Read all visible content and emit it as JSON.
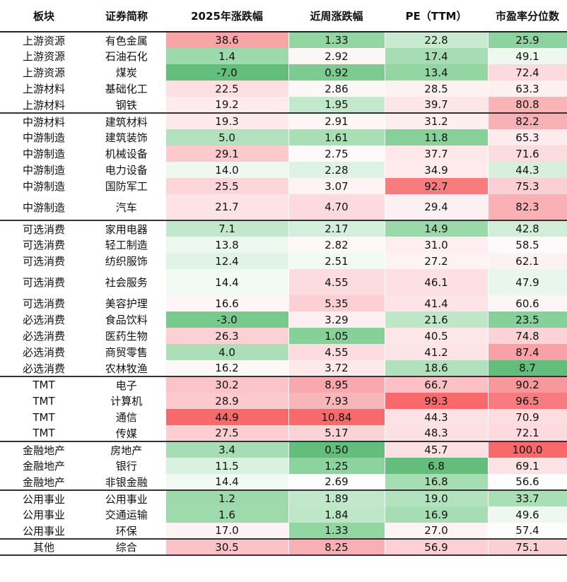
{
  "chart_data": {
    "type": "table",
    "columns": [
      "板块",
      "证券简称",
      "2025年涨跌幅",
      "近周涨跌幅",
      "PE（TTM）",
      "市盈率分位数"
    ],
    "rows": [
      {
        "sector": "上游资源",
        "name": "有色金属",
        "ytd": "38.6",
        "week": "1.33",
        "pe": "22.8",
        "pct": "25.9",
        "c": [
          "#f8a5a5",
          "#92d6a2",
          "#c8ebd0",
          "#8ed39f"
        ]
      },
      {
        "sector": "上游资源",
        "name": "石油石化",
        "ytd": "1.4",
        "week": "2.92",
        "pe": "17.4",
        "pct": "49.1",
        "c": [
          "#9ddaab",
          "#fdf6f7",
          "#a6ddb3",
          "#edf8f0"
        ]
      },
      {
        "sector": "上游资源",
        "name": "煤炭",
        "ytd": "-7.0",
        "week": "0.92",
        "pe": "13.4",
        "pct": "72.4",
        "c": [
          "#63be7b",
          "#7ccb91",
          "#93d5a3",
          "#fcdade"
        ]
      },
      {
        "sector": "上游材料",
        "name": "基础化工",
        "ytd": "22.5",
        "week": "2.86",
        "pe": "28.5",
        "pct": "63.3",
        "c": [
          "#fde0e3",
          "#fef7f8",
          "#fdf1f2",
          "#fdf0f1"
        ]
      },
      {
        "sector": "上游材料",
        "name": "钢铁",
        "ytd": "19.2",
        "week": "1.95",
        "pe": "39.7",
        "pct": "80.8",
        "c": [
          "#feebed",
          "#c3e9cc",
          "#fde6e8",
          "#f9b4b8"
        ]
      },
      {
        "sector": "中游材料",
        "name": "建筑材料",
        "ytd": "19.3",
        "week": "2.91",
        "pe": "31.2",
        "pct": "82.2",
        "c": [
          "#feeaec",
          "#fef6f7",
          "#feeef0",
          "#f9b1b5"
        ],
        "grp": true
      },
      {
        "sector": "中游制造",
        "name": "建筑装饰",
        "ytd": "5.0",
        "week": "1.61",
        "pe": "11.8",
        "pct": "65.3",
        "c": [
          "#b2e2bd",
          "#a9dfb5",
          "#86d099",
          "#fdebed"
        ]
      },
      {
        "sector": "中游制造",
        "name": "机械设备",
        "ytd": "29.1",
        "week": "2.75",
        "pe": "37.7",
        "pct": "71.6",
        "c": [
          "#fcc9cd",
          "#fef9fa",
          "#fde8ea",
          "#fcdcdf"
        ]
      },
      {
        "sector": "中游制造",
        "name": "电力设备",
        "ytd": "14.0",
        "week": "2.28",
        "pe": "34.9",
        "pct": "44.3",
        "c": [
          "#eef8f1",
          "#dff3e5",
          "#fdebed",
          "#d6f0dc"
        ]
      },
      {
        "sector": "中游制造",
        "name": "国防军工",
        "ytd": "25.5",
        "week": "3.07",
        "pe": "92.7",
        "pct": "75.3",
        "c": [
          "#fcd5d8",
          "#fef3f4",
          "#f77c7e",
          "#fbd0d4"
        ]
      },
      {
        "sector": "中游制造",
        "name": "汽车",
        "ytd": "21.7",
        "week": "4.70",
        "pe": "29.4",
        "pct": "82.3",
        "c": [
          "#fde3e5",
          "#fcdadd",
          "#fdf0f2",
          "#f9b1b5"
        ],
        "tall": true
      },
      {
        "sector": "可选消费",
        "name": "家用电器",
        "ytd": "7.1",
        "week": "2.17",
        "pe": "14.9",
        "pct": "42.8",
        "c": [
          "#c2e8cb",
          "#d3eeda",
          "#9cd9aa",
          "#d2eed9"
        ],
        "grp": true
      },
      {
        "sector": "可选消费",
        "name": "轻工制造",
        "ytd": "13.8",
        "week": "2.82",
        "pe": "31.0",
        "pct": "58.5",
        "c": [
          "#ecf7ef",
          "#fef8f9",
          "#feeef0",
          "#fefafb"
        ]
      },
      {
        "sector": "可选消费",
        "name": "纺织服饰",
        "ytd": "12.4",
        "week": "2.51",
        "pe": "27.2",
        "pct": "62.1",
        "c": [
          "#e0f4e6",
          "#f0f9f3",
          "#fdf3f4",
          "#fdf2f3"
        ]
      },
      {
        "sector": "可选消费",
        "name": "社会服务",
        "ytd": "14.4",
        "week": "4.55",
        "pe": "46.1",
        "pct": "47.9",
        "c": [
          "#f2faf4",
          "#fcdcdf",
          "#fde0e3",
          "#e8f6ec"
        ],
        "tall": true
      },
      {
        "sector": "可选消费",
        "name": "美容护理",
        "ytd": "16.6",
        "week": "5.35",
        "pe": "41.4",
        "pct": "60.6",
        "c": [
          "#fef5f6",
          "#fbcfd3",
          "#fde4e7",
          "#fef5f6"
        ]
      },
      {
        "sector": "必选消费",
        "name": "食品饮料",
        "ytd": "-3.0",
        "week": "3.29",
        "pe": "21.6",
        "pct": "23.5",
        "c": [
          "#78c98d",
          "#fdeff1",
          "#bee7c8",
          "#86d099"
        ]
      },
      {
        "sector": "必选消费",
        "name": "医药生物",
        "ytd": "26.3",
        "week": "1.05",
        "pe": "40.5",
        "pct": "74.8",
        "c": [
          "#fcd1d5",
          "#86d099",
          "#fde6e8",
          "#fbd2d6"
        ]
      },
      {
        "sector": "必选消费",
        "name": "商贸零售",
        "ytd": "4.0",
        "week": "4.55",
        "pe": "41.2",
        "pct": "87.4",
        "c": [
          "#acdfb8",
          "#fcdcdf",
          "#fde5e7",
          "#f8a1a6"
        ]
      },
      {
        "sector": "必选消费",
        "name": "农林牧渔",
        "ytd": "16.2",
        "week": "3.72",
        "pe": "18.6",
        "pct": "8.7",
        "c": [
          "#fef7f8",
          "#fde8ea",
          "#b0e1bc",
          "#63be7b"
        ]
      },
      {
        "sector": "TMT",
        "name": "电子",
        "ytd": "30.2",
        "week": "8.95",
        "pe": "66.7",
        "pct": "90.2",
        "c": [
          "#fbc4c8",
          "#f9a9ad",
          "#fbc0c4",
          "#f7989c"
        ],
        "grp": true
      },
      {
        "sector": "TMT",
        "name": "计算机",
        "ytd": "28.9",
        "week": "7.93",
        "pe": "99.3",
        "pct": "96.5",
        "c": [
          "#fcc9cd",
          "#f9b6ba",
          "#f8696b",
          "#f87c7f"
        ]
      },
      {
        "sector": "TMT",
        "name": "通信",
        "ytd": "44.9",
        "week": "10.84",
        "pe": "44.3",
        "pct": "70.9",
        "c": [
          "#f8696b",
          "#f8696b",
          "#fde2e5",
          "#fcdde0"
        ]
      },
      {
        "sector": "TMT",
        "name": "传媒",
        "ytd": "27.5",
        "week": "5.17",
        "pe": "48.3",
        "pct": "72.1",
        "c": [
          "#fccdd1",
          "#fbd3d7",
          "#fde0e3",
          "#fcdadd"
        ]
      },
      {
        "sector": "金融地产",
        "name": "房地产",
        "ytd": "3.4",
        "week": "0.50",
        "pe": "45.7",
        "pct": "100.0",
        "c": [
          "#a7ddb4",
          "#63be7b",
          "#fde0e3",
          "#f8696b"
        ],
        "grp": true
      },
      {
        "sector": "金融地产",
        "name": "银行",
        "ytd": "11.5",
        "week": "1.25",
        "pe": "6.8",
        "pct": "69.1",
        "c": [
          "#d9f1df",
          "#8dd39e",
          "#63be7b",
          "#fce2e4"
        ]
      },
      {
        "sector": "金融地产",
        "name": "非银金融",
        "ytd": "14.4",
        "week": "2.69",
        "pe": "16.8",
        "pct": "56.6",
        "c": [
          "#f1f9f3",
          "#fbfdfc",
          "#a6ddb3",
          "#fdfdfd"
        ]
      },
      {
        "sector": "公用事业",
        "name": "公用事业",
        "ytd": "1.2",
        "week": "1.89",
        "pe": "19.0",
        "pct": "33.7",
        "c": [
          "#9ddaab",
          "#c2e8cb",
          "#b3e2be",
          "#a9dfb5"
        ],
        "grp": true
      },
      {
        "sector": "公用事业",
        "name": "交通运输",
        "ytd": "1.6",
        "week": "1.84",
        "pe": "16.9",
        "pct": "49.6",
        "c": [
          "#9fdaac",
          "#bee7c8",
          "#a7ddb4",
          "#eef8f1"
        ]
      },
      {
        "sector": "公用事业",
        "name": "环保",
        "ytd": "17.0",
        "week": "1.33",
        "pe": "27.0",
        "pct": "57.4",
        "c": [
          "#fef3f4",
          "#92d6a2",
          "#fdf3f4",
          "#fdfdfd"
        ]
      },
      {
        "sector": "其他",
        "name": "综合",
        "ytd": "30.5",
        "week": "8.25",
        "pe": "56.9",
        "pct": "75.1",
        "c": [
          "#fbc3c7",
          "#f9b0b4",
          "#fcd0d4",
          "#fbd0d4"
        ],
        "grp": true
      }
    ]
  }
}
